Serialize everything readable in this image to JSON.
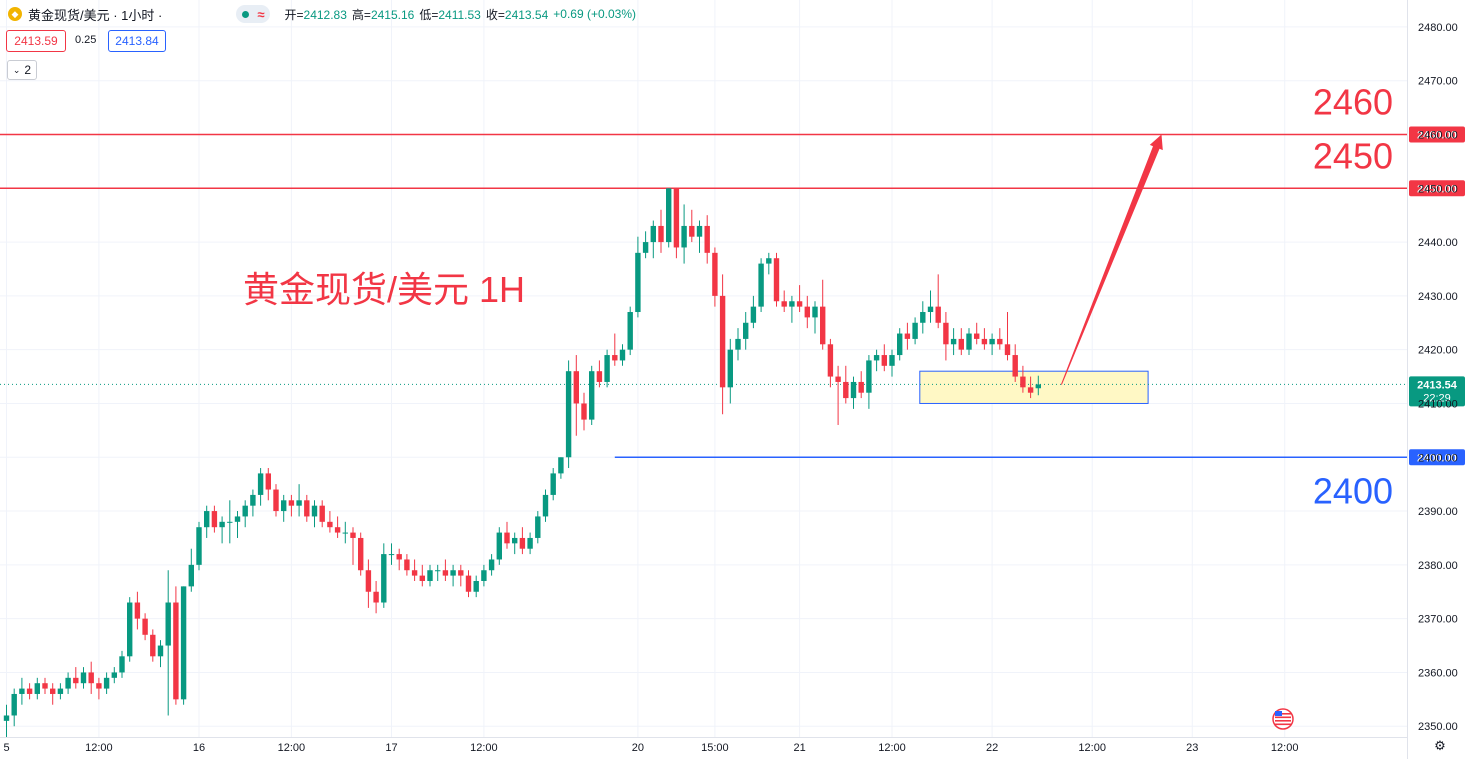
{
  "header": {
    "symbol_title": "黄金现货/美元 · 1小时 ·",
    "ohlc": [
      {
        "label": "开",
        "value": "2412.83"
      },
      {
        "label": "高",
        "value": "2415.16"
      },
      {
        "label": "低",
        "value": "2411.53"
      },
      {
        "label": "收",
        "value": "2413.54"
      }
    ],
    "change": "+0.69 (+0.03%)",
    "sell_price": "2413.59",
    "spread": "0.25",
    "buy_price": "2413.84",
    "collapse_count": "2"
  },
  "colors": {
    "up": "#089981",
    "down": "#f23645",
    "resistance": "#f23645",
    "support": "#2962ff",
    "zone_fill": "#fff8c5",
    "zone_border": "#2962ff",
    "last_price_bg": "#089981"
  },
  "chart_data": {
    "type": "candlestick",
    "title": "黄金现货/美元 1H",
    "interval": "1小时",
    "y_axis": {
      "range": [
        2348,
        2485
      ],
      "ticks": [
        "2480.00",
        "2470.00",
        "2460.00",
        "2450.00",
        "2440.00",
        "2430.00",
        "2420.00",
        "2410.00",
        "2400.00",
        "2390.00",
        "2380.00",
        "2370.00",
        "2360.00",
        "2350.00"
      ]
    },
    "x_axis": {
      "ticks": [
        {
          "label": "5",
          "idx": 0
        },
        {
          "label": "12:00",
          "idx": 12
        },
        {
          "label": "16",
          "idx": 25
        },
        {
          "label": "12:00",
          "idx": 37
        },
        {
          "label": "17",
          "idx": 50
        },
        {
          "label": "12:00",
          "idx": 62
        },
        {
          "label": "20",
          "idx": 82
        },
        {
          "label": "15:00",
          "idx": 92
        },
        {
          "label": "21",
          "idx": 103
        },
        {
          "label": "12:00",
          "idx": 115
        },
        {
          "label": "22",
          "idx": 128
        },
        {
          "label": "12:00",
          "idx": 141
        },
        {
          "label": "23",
          "idx": 154
        },
        {
          "label": "12:00",
          "idx": 166
        }
      ]
    },
    "candles": [
      [
        2351,
        2354,
        2348,
        2352
      ],
      [
        2352,
        2357,
        2350,
        2356
      ],
      [
        2356,
        2359,
        2354,
        2357
      ],
      [
        2357,
        2358,
        2355,
        2356
      ],
      [
        2356,
        2359,
        2355,
        2358
      ],
      [
        2358,
        2359,
        2356,
        2357
      ],
      [
        2357,
        2358,
        2354,
        2356
      ],
      [
        2356,
        2358,
        2355,
        2357
      ],
      [
        2357,
        2360,
        2356,
        2359
      ],
      [
        2359,
        2361,
        2357,
        2358
      ],
      [
        2358,
        2361,
        2357,
        2360
      ],
      [
        2360,
        2362,
        2356,
        2358
      ],
      [
        2358,
        2359,
        2355,
        2357
      ],
      [
        2357,
        2360,
        2356,
        2359
      ],
      [
        2359,
        2361,
        2358,
        2360
      ],
      [
        2360,
        2364,
        2359,
        2363
      ],
      [
        2363,
        2374,
        2362,
        2373
      ],
      [
        2373,
        2375,
        2368,
        2370
      ],
      [
        2370,
        2371,
        2366,
        2367
      ],
      [
        2367,
        2368,
        2362,
        2363
      ],
      [
        2363,
        2366,
        2361,
        2365
      ],
      [
        2365,
        2379,
        2352,
        2373
      ],
      [
        2373,
        2376,
        2354,
        2355
      ],
      [
        2355,
        2376,
        2354,
        2376
      ],
      [
        2376,
        2383,
        2375,
        2380
      ],
      [
        2380,
        2388,
        2379,
        2387
      ],
      [
        2387,
        2391,
        2385,
        2390
      ],
      [
        2390,
        2391,
        2386,
        2387
      ],
      [
        2387,
        2389,
        2384,
        2388
      ],
      [
        2388,
        2392,
        2384,
        2388
      ],
      [
        2388,
        2390,
        2385,
        2389
      ],
      [
        2389,
        2392,
        2387,
        2391
      ],
      [
        2391,
        2394,
        2389,
        2393
      ],
      [
        2393,
        2398,
        2391,
        2397
      ],
      [
        2397,
        2398,
        2392,
        2394
      ],
      [
        2394,
        2395,
        2389,
        2390
      ],
      [
        2390,
        2393,
        2388,
        2392
      ],
      [
        2392,
        2393,
        2389,
        2391
      ],
      [
        2391,
        2395,
        2389,
        2392
      ],
      [
        2392,
        2393,
        2388,
        2389
      ],
      [
        2389,
        2392,
        2387,
        2391
      ],
      [
        2391,
        2392,
        2387,
        2388
      ],
      [
        2388,
        2390,
        2386,
        2387
      ],
      [
        2387,
        2389,
        2385,
        2386
      ],
      [
        2386,
        2388,
        2384,
        2386
      ],
      [
        2386,
        2387,
        2380,
        2385
      ],
      [
        2385,
        2386,
        2378,
        2379
      ],
      [
        2379,
        2381,
        2372,
        2375
      ],
      [
        2375,
        2377,
        2371,
        2373
      ],
      [
        2373,
        2384,
        2372,
        2382
      ],
      [
        2382,
        2384,
        2380,
        2382
      ],
      [
        2382,
        2383,
        2379,
        2381
      ],
      [
        2381,
        2382,
        2378,
        2379
      ],
      [
        2379,
        2381,
        2377,
        2378
      ],
      [
        2378,
        2380,
        2376,
        2377
      ],
      [
        2377,
        2380,
        2376,
        2379
      ],
      [
        2379,
        2380,
        2377,
        2379
      ],
      [
        2379,
        2381,
        2377,
        2378
      ],
      [
        2378,
        2380,
        2376,
        2379
      ],
      [
        2379,
        2380,
        2376,
        2378
      ],
      [
        2378,
        2379,
        2374,
        2375
      ],
      [
        2375,
        2378,
        2374,
        2377
      ],
      [
        2377,
        2380,
        2376,
        2379
      ],
      [
        2379,
        2382,
        2378,
        2381
      ],
      [
        2381,
        2387,
        2380,
        2386
      ],
      [
        2386,
        2388,
        2383,
        2384
      ],
      [
        2384,
        2386,
        2382,
        2385
      ],
      [
        2385,
        2387,
        2382,
        2383
      ],
      [
        2383,
        2386,
        2382,
        2385
      ],
      [
        2385,
        2390,
        2384,
        2389
      ],
      [
        2389,
        2394,
        2388,
        2393
      ],
      [
        2393,
        2398,
        2392,
        2397
      ],
      [
        2397,
        2400,
        2396,
        2400
      ],
      [
        2400,
        2418,
        2398,
        2416
      ],
      [
        2416,
        2419,
        2404,
        2410
      ],
      [
        2410,
        2412,
        2405,
        2407
      ],
      [
        2407,
        2417,
        2406,
        2416
      ],
      [
        2416,
        2418,
        2413,
        2414
      ],
      [
        2414,
        2420,
        2413,
        2419
      ],
      [
        2419,
        2423,
        2417,
        2418
      ],
      [
        2418,
        2421,
        2417,
        2420
      ],
      [
        2420,
        2428,
        2419,
        2427
      ],
      [
        2427,
        2441,
        2426,
        2438
      ],
      [
        2438,
        2442,
        2437,
        2440
      ],
      [
        2440,
        2444,
        2437,
        2443
      ],
      [
        2443,
        2446,
        2438,
        2440
      ],
      [
        2440,
        2450,
        2439,
        2450
      ],
      [
        2450,
        2450,
        2437,
        2439
      ],
      [
        2439,
        2447,
        2436,
        2443
      ],
      [
        2443,
        2446,
        2440,
        2441
      ],
      [
        2441,
        2444,
        2438,
        2443
      ],
      [
        2443,
        2445,
        2436,
        2438
      ],
      [
        2438,
        2439,
        2428,
        2430
      ],
      [
        2430,
        2434,
        2408,
        2413
      ],
      [
        2413,
        2422,
        2410,
        2420
      ],
      [
        2420,
        2424,
        2418,
        2422
      ],
      [
        2422,
        2427,
        2420,
        2425
      ],
      [
        2425,
        2430,
        2424,
        2428
      ],
      [
        2428,
        2437,
        2427,
        2436
      ],
      [
        2436,
        2438,
        2434,
        2437
      ],
      [
        2437,
        2438,
        2428,
        2429
      ],
      [
        2429,
        2431,
        2427,
        2428
      ],
      [
        2428,
        2430,
        2425,
        2429
      ],
      [
        2429,
        2432,
        2427,
        2428
      ],
      [
        2428,
        2430,
        2424,
        2426
      ],
      [
        2426,
        2429,
        2423,
        2428
      ],
      [
        2428,
        2433,
        2420,
        2421
      ],
      [
        2421,
        2422,
        2413,
        2415
      ],
      [
        2415,
        2417,
        2406,
        2414
      ],
      [
        2414,
        2417,
        2410,
        2411
      ],
      [
        2411,
        2415,
        2409,
        2414
      ],
      [
        2414,
        2416,
        2411,
        2412
      ],
      [
        2412,
        2419,
        2409,
        2418
      ],
      [
        2418,
        2420,
        2416,
        2419
      ],
      [
        2419,
        2421,
        2416,
        2417
      ],
      [
        2417,
        2420,
        2415,
        2419
      ],
      [
        2419,
        2424,
        2418,
        2423
      ],
      [
        2423,
        2425,
        2420,
        2422
      ],
      [
        2422,
        2426,
        2421,
        2425
      ],
      [
        2425,
        2429,
        2423,
        2427
      ],
      [
        2427,
        2431,
        2425,
        2428
      ],
      [
        2428,
        2434,
        2424,
        2425
      ],
      [
        2425,
        2427,
        2418,
        2421
      ],
      [
        2421,
        2424,
        2419,
        2422
      ],
      [
        2422,
        2424,
        2419,
        2420
      ],
      [
        2420,
        2424,
        2419,
        2423
      ],
      [
        2423,
        2425,
        2421,
        2422
      ],
      [
        2422,
        2424,
        2420,
        2421
      ],
      [
        2421,
        2423,
        2419,
        2422
      ],
      [
        2422,
        2424,
        2420,
        2421
      ],
      [
        2421,
        2427,
        2418,
        2419
      ],
      [
        2419,
        2421,
        2414,
        2415
      ],
      [
        2415,
        2417,
        2412,
        2413
      ],
      [
        2413,
        2415,
        2411,
        2412
      ],
      [
        2412.83,
        2415.16,
        2411.53,
        2413.54
      ]
    ],
    "levels": [
      {
        "label": "2460.00",
        "value": 2460,
        "big_label": "2460",
        "color": "resistance"
      },
      {
        "label": "2450.00",
        "value": 2450,
        "big_label": "2450",
        "color": "resistance"
      },
      {
        "label": "2400.00",
        "value": 2400,
        "big_label": "2400",
        "color": "support"
      }
    ],
    "annotation_text": "黄金现货/美元 1H",
    "zone": {
      "from_idx": 119,
      "to_idx": 148,
      "top": 2416,
      "bottom": 2410
    },
    "arrow": {
      "from_idx": 137,
      "from_value": 2413.5,
      "to_idx": 150,
      "to_value": 2460
    },
    "last_price": {
      "value": 2413.54,
      "label": "2413.54",
      "countdown": "22:29"
    }
  }
}
